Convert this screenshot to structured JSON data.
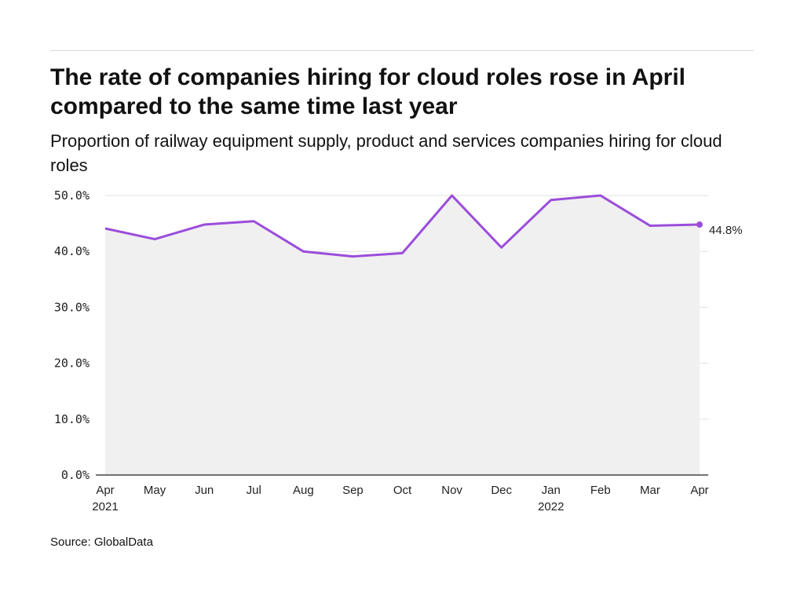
{
  "header": {
    "title": "The rate of companies hiring for cloud roles rose in April compared to the same time last year",
    "subtitle": "Proportion of railway equipment supply, product and services companies hiring for cloud roles"
  },
  "footer": {
    "source": "Source: GlobalData"
  },
  "colors": {
    "line": "#9b4ddb",
    "area": "#f0f0f0",
    "grid": "#e2e2e2",
    "axis": "#222222"
  },
  "chart_data": {
    "type": "area",
    "categories": [
      "Apr",
      "May",
      "Jun",
      "Jul",
      "Aug",
      "Sep",
      "Oct",
      "Nov",
      "Dec",
      "Jan",
      "Feb",
      "Mar",
      "Apr"
    ],
    "category_years": [
      "2021",
      "",
      "",
      "",
      "",
      "",
      "",
      "",
      "",
      "2022",
      "",
      "",
      ""
    ],
    "values": [
      44.1,
      42.2,
      44.8,
      45.4,
      40.0,
      39.1,
      39.7,
      50.0,
      40.7,
      49.2,
      50.0,
      44.6,
      44.8
    ],
    "y_ticks": [
      "0.0%",
      "10.0%",
      "20.0%",
      "30.0%",
      "40.0%",
      "50.0%"
    ],
    "ylim": [
      0,
      50
    ],
    "end_label": "44.8%",
    "grid": true,
    "legend": "none"
  }
}
